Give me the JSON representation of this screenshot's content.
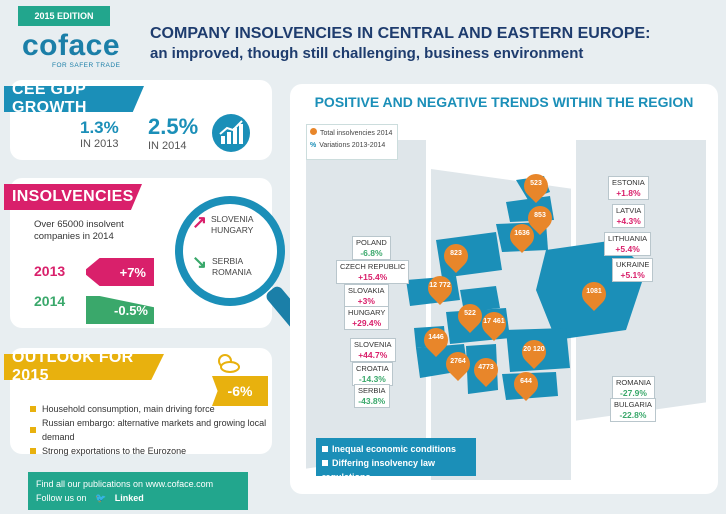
{
  "header": {
    "edition": "2015 EDITION",
    "logo_word": "coface",
    "logo_tagline": "FOR SAFER TRADE",
    "title_line1": "COMPANY INSOLVENCIES IN CENTRAL AND EASTERN EUROPE:",
    "title_line2": "an improved, though still challenging, business environment"
  },
  "gdp": {
    "banner": "CEE GDP GROWTH",
    "v2013": "1.3%",
    "l2013": "IN 2013",
    "v2014": "2.5%",
    "l2014": "IN 2014"
  },
  "insolvencies": {
    "banner": "INSOLVENCIES",
    "text": "Over 65000 insolvent companies in 2014",
    "y2013": "2013",
    "c2013": "+7%",
    "y2014": "2014",
    "c2014": "-0.5%",
    "up_countries": "SLOVENIA\nHUNGARY",
    "down_countries": "SERBIA\nROMANIA"
  },
  "outlook": {
    "banner": "OUTLOOK FOR 2015",
    "badge": "-6%",
    "items": [
      "Household consumption, main driving force",
      "Russian embargo: alternative markets and growing local demand",
      "Strong exportations to the Eurozone"
    ]
  },
  "footer": {
    "line1": "Find all our publications on www.coface.com",
    "line2": "Follow us on",
    "linkedin": "Linked"
  },
  "region": {
    "title": "POSITIVE AND NEGATIVE TRENDS WITHIN THE REGION",
    "legend_total": "Total insolvencies 2014",
    "legend_pct_symbol": "%",
    "legend_var": "Variations 2013-2014",
    "bottom1": "Inequal economic conditions",
    "bottom2": "Differing insolvency law regulations"
  },
  "countries": [
    {
      "name": "ESTONIA",
      "pct": "+1.8%",
      "sign": "pos",
      "total": "523"
    },
    {
      "name": "LATVIA",
      "pct": "+4.3%",
      "sign": "pos",
      "total": "853"
    },
    {
      "name": "LITHUANIA",
      "pct": "+5.4%",
      "sign": "pos",
      "total": "1636"
    },
    {
      "name": "UKRAINE",
      "pct": "+5.1%",
      "sign": "pos",
      "total": "1081"
    },
    {
      "name": "POLAND",
      "pct": "-6.8%",
      "sign": "neg",
      "total": "823"
    },
    {
      "name": "CZECH REPUBLIC",
      "pct": "+15.4%",
      "sign": "pos",
      "total": "12 772"
    },
    {
      "name": "SLOVAKIA",
      "pct": "+3%",
      "sign": "pos",
      "total": "522"
    },
    {
      "name": "HUNGARY",
      "pct": "+29.4%",
      "sign": "pos",
      "total": "17 461"
    },
    {
      "name": "SLOVENIA",
      "pct": "+44.7%",
      "sign": "pos",
      "total": "1446"
    },
    {
      "name": "CROATIA",
      "pct": "-14.3%",
      "sign": "neg",
      "total": "2764"
    },
    {
      "name": "SERBIA",
      "pct": "-43.8%",
      "sign": "neg",
      "total": "4773"
    },
    {
      "name": "ROMANIA",
      "pct": "-27.9%",
      "sign": "neg",
      "total": "20 120"
    },
    {
      "name": "BULGARIA",
      "pct": "-22.8%",
      "sign": "neg",
      "total": "644"
    }
  ],
  "colors": {
    "teal": "#22a68d",
    "blue": "#1b8fb8",
    "pink": "#d9206b",
    "green": "#3aa86b",
    "yellow": "#e8b10e",
    "orange": "#e8862a",
    "navy": "#1e3c6e"
  }
}
